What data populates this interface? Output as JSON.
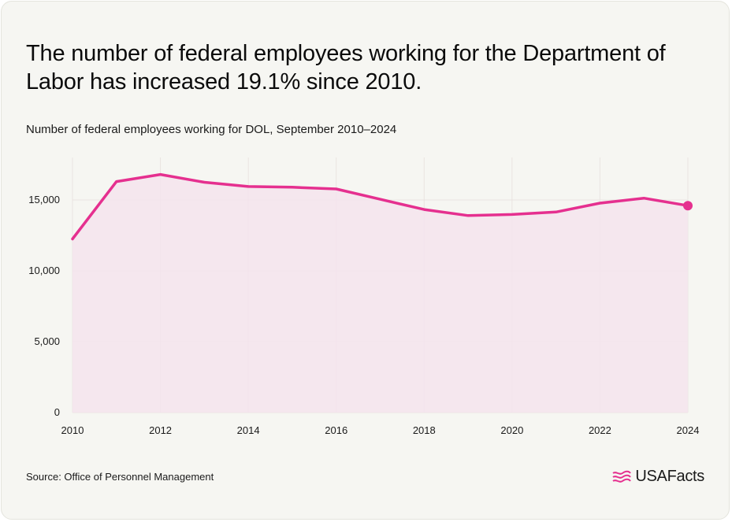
{
  "title": "The number of federal employees working for the Department of Labor has increased 19.1% since 2010.",
  "subtitle": "Number of federal employees working for DOL, September 2010–2024",
  "source": "Source: Office of Personnel Management",
  "brand": {
    "name": "USAFacts",
    "icon": "usa-flag-icon",
    "accent_color": "#e5308f"
  },
  "chart_data": {
    "type": "area",
    "title": "The number of federal employees working for the Department of Labor has increased 19.1% since 2010.",
    "subtitle": "Number of federal employees working for DOL, September 2010–2024",
    "xlabel": "",
    "ylabel": "",
    "x": [
      2010,
      2011,
      2012,
      2013,
      2014,
      2015,
      2016,
      2017,
      2018,
      2019,
      2020,
      2021,
      2022,
      2023,
      2024
    ],
    "series": [
      {
        "values": [
          12250,
          16300,
          16800,
          16250,
          15950,
          15900,
          15780,
          15050,
          14330,
          13900,
          13980,
          14150,
          14780,
          15130,
          14600
        ]
      }
    ],
    "xlim": [
      2010,
      2024
    ],
    "ylim": [
      0,
      18000
    ],
    "x_ticks": [
      2010,
      2012,
      2014,
      2016,
      2018,
      2020,
      2022,
      2024
    ],
    "x_tick_labels": [
      "2010",
      "2012",
      "2014",
      "2016",
      "2018",
      "2020",
      "2022",
      "2024"
    ],
    "y_ticks": [
      0,
      5000,
      10000,
      15000
    ],
    "y_tick_labels": [
      "0",
      "5,000",
      "10,000",
      "15,000"
    ],
    "grid": true,
    "line_color": "#e5308f",
    "fill_color": "#f5e4ed",
    "grid_color": "#e9e4e1",
    "last_point_marker": true
  }
}
